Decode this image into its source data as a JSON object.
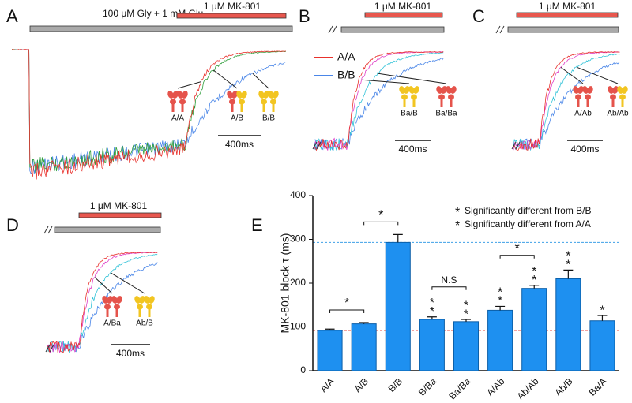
{
  "panels": [
    {
      "letter": "A",
      "solution": "100 μM Gly + 1 mM Glu",
      "drug": "1 μM MK-801",
      "scale": "400ms",
      "icons": [
        {
          "label": "A/A",
          "colors": [
            "#e5534b",
            "#e5534b"
          ]
        },
        {
          "label": "A/B",
          "colors": [
            "#e5534b",
            "#f2c521"
          ]
        },
        {
          "label": "B/B",
          "colors": [
            "#f2c521",
            "#f2c521"
          ]
        }
      ]
    },
    {
      "letter": "B",
      "drug": "1 μM MK-801",
      "scale": "400ms",
      "legend": [
        {
          "name": "A/A",
          "color": "#e8312c"
        },
        {
          "name": "B/B",
          "color": "#4a86e8"
        }
      ],
      "icons": [
        {
          "label": "Ba/B",
          "colors": [
            "#f2c521",
            "#f2c521"
          ]
        },
        {
          "label": "Ba/Ba",
          "colors": [
            "#e5534b",
            "#e5534b"
          ]
        }
      ]
    },
    {
      "letter": "C",
      "drug": "1 μM MK-801",
      "scale": "400ms",
      "icons": [
        {
          "label": "A/Ab",
          "colors": [
            "#e5534b",
            "#e5534b"
          ]
        },
        {
          "label": "Ab/Ab",
          "colors": [
            "#e5534b",
            "#f2c521"
          ]
        }
      ]
    },
    {
      "letter": "D",
      "drug": "1 μM MK-801",
      "scale": "400ms",
      "icons": [
        {
          "label": "A/Ba",
          "colors": [
            "#e5534b",
            "#e5534b"
          ]
        },
        {
          "label": "Ab/B",
          "colors": [
            "#f2c521",
            "#f2c521"
          ]
        }
      ]
    }
  ],
  "chart_data": {
    "type": "bar",
    "letter": "E",
    "y_label": "MK-801 block τ (ms)",
    "categories": [
      "A/A",
      "A/B",
      "B/B",
      "B/Ba",
      "Ba/Ba",
      "A/Ab",
      "Ab/Ab",
      "Ab/B",
      "Ba/A"
    ],
    "values": [
      92,
      107,
      293,
      117,
      112,
      138,
      188,
      210,
      114
    ],
    "error": [
      3,
      3,
      18,
      6,
      5,
      9,
      7,
      20,
      12
    ],
    "color": "#1e90f0",
    "ylim": [
      0,
      400
    ],
    "yticks": [
      0,
      100,
      200,
      300,
      400
    ],
    "reference_lines": [
      {
        "value": 293,
        "color": "#3fa0e8"
      },
      {
        "value": 92,
        "color": "#e8453c"
      }
    ],
    "significance": {
      "marker": "*",
      "legend": [
        {
          "text": "Significantly different from B/B",
          "color": "#3fa0e8"
        },
        {
          "text": "Significantly different from A/A",
          "color": "#e8574e"
        }
      ],
      "vs_bb": [
        false,
        false,
        false,
        true,
        true,
        true,
        true,
        true,
        true
      ],
      "vs_aa": [
        false,
        false,
        false,
        true,
        true,
        true,
        true,
        true,
        false
      ]
    },
    "brackets": [
      {
        "between": [
          "A/A",
          "A/B"
        ],
        "label": "*"
      },
      {
        "between": [
          "A/B",
          "B/B"
        ],
        "label": "*"
      },
      {
        "between": [
          "B/Ba",
          "Ba/Ba"
        ],
        "label": "N.S"
      },
      {
        "between": [
          "A/Ab",
          "Ab/Ab"
        ],
        "label": "*"
      }
    ]
  }
}
